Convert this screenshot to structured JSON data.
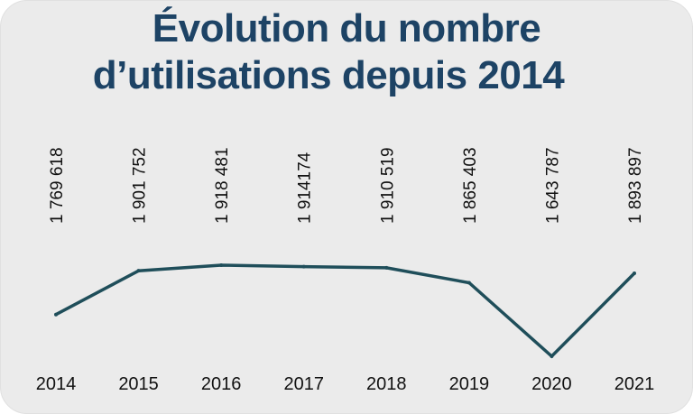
{
  "colors": {
    "background": "#ebebeb",
    "title": "#1d4365",
    "line": "#1f4e5a",
    "text": "#111111"
  },
  "chart_data": {
    "type": "line",
    "title": "Évolution du nombre d’utilisations depuis 2014",
    "title_lines": [
      "Évolution du nombre",
      "d’utilisations depuis 2014"
    ],
    "xlabel": "",
    "ylabel": "",
    "grid": false,
    "categories": [
      "2014",
      "2015",
      "2016",
      "2017",
      "2018",
      "2019",
      "2020",
      "2021"
    ],
    "values": [
      1769618,
      1901752,
      1918481,
      1914174,
      1910519,
      1865403,
      1643787,
      1893897
    ],
    "value_labels": [
      "1 769 618",
      "1 901 752",
      "1 918 481",
      "1 914174",
      "1 910 519",
      "1 865 403",
      "1 643 787",
      "1 893 897"
    ]
  }
}
